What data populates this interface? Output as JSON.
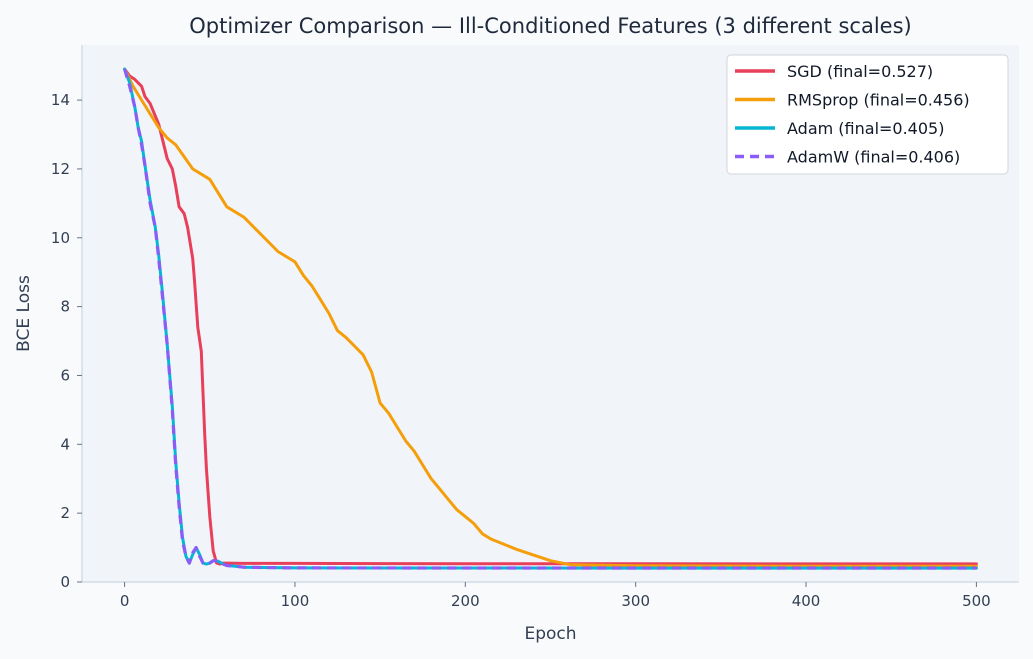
{
  "chart_data": {
    "type": "line",
    "title": "Optimizer Comparison — Ill-Conditioned Features (3 different scales)",
    "xlabel": "Epoch",
    "ylabel": "BCE Loss",
    "xlim": [
      -25,
      525
    ],
    "ylim": [
      0,
      15.6
    ],
    "xticks": [
      0,
      100,
      200,
      300,
      400,
      500
    ],
    "yticks": [
      0,
      2,
      4,
      6,
      8,
      10,
      12,
      14
    ],
    "grid": false,
    "legend_position": "top-right",
    "series": [
      {
        "name": "SGD (final=0.527)",
        "color": "#e83f5b",
        "dash": "solid",
        "x": [
          0,
          3,
          6,
          10,
          12,
          15,
          20,
          22,
          25,
          28,
          30,
          32,
          35,
          37,
          40,
          41,
          43,
          45,
          47,
          48,
          50,
          52,
          54,
          56,
          58,
          60,
          70,
          100,
          200,
          300,
          400,
          500
        ],
        "y": [
          14.9,
          14.7,
          14.6,
          14.4,
          14.1,
          13.9,
          13.3,
          12.9,
          12.3,
          12.0,
          11.5,
          10.9,
          10.7,
          10.3,
          9.4,
          8.8,
          7.4,
          6.7,
          4.3,
          3.3,
          1.9,
          0.9,
          0.55,
          0.52,
          0.55,
          0.55,
          0.54,
          0.54,
          0.53,
          0.53,
          0.527,
          0.527
        ]
      },
      {
        "name": "RMSprop (final=0.456)",
        "color": "#f59e0b",
        "dash": "solid",
        "x": [
          0,
          5,
          10,
          20,
          25,
          30,
          40,
          50,
          60,
          70,
          80,
          90,
          100,
          105,
          110,
          115,
          120,
          125,
          130,
          140,
          145,
          150,
          155,
          160,
          165,
          170,
          175,
          180,
          185,
          190,
          195,
          200,
          205,
          210,
          215,
          230,
          250,
          262,
          300,
          400,
          500
        ],
        "y": [
          14.9,
          14.4,
          14.0,
          13.2,
          12.9,
          12.7,
          12.0,
          11.7,
          10.9,
          10.6,
          10.1,
          9.6,
          9.3,
          8.9,
          8.6,
          8.2,
          7.8,
          7.3,
          7.1,
          6.6,
          6.1,
          5.2,
          4.9,
          4.5,
          4.1,
          3.8,
          3.4,
          3.0,
          2.7,
          2.4,
          2.1,
          1.9,
          1.7,
          1.4,
          1.25,
          0.95,
          0.62,
          0.5,
          0.47,
          0.46,
          0.456
        ]
      },
      {
        "name": "Adam (final=0.405)",
        "color": "#06b6d4",
        "dash": "solid",
        "x": [
          0,
          3,
          6,
          8,
          10,
          12,
          15,
          18,
          20,
          22,
          25,
          28,
          30,
          32,
          34,
          36,
          38,
          40,
          42,
          44,
          46,
          48,
          50,
          52,
          55,
          58,
          60,
          65,
          70,
          80,
          100,
          200,
          300,
          400,
          500
        ],
        "y": [
          14.9,
          14.5,
          13.8,
          13.2,
          12.8,
          12.1,
          11.1,
          10.3,
          9.5,
          8.5,
          6.9,
          5.1,
          3.5,
          2.3,
          1.3,
          0.75,
          0.55,
          0.8,
          1.0,
          0.8,
          0.55,
          0.52,
          0.55,
          0.62,
          0.6,
          0.52,
          0.48,
          0.46,
          0.43,
          0.42,
          0.41,
          0.406,
          0.405,
          0.405,
          0.405
        ]
      },
      {
        "name": "AdamW (final=0.406)",
        "color": "#8b5cf6",
        "dash": "dashed",
        "x": [
          0,
          3,
          6,
          8,
          10,
          12,
          15,
          18,
          20,
          22,
          25,
          28,
          30,
          32,
          34,
          36,
          38,
          40,
          42,
          44,
          46,
          48,
          50,
          52,
          55,
          58,
          60,
          65,
          70,
          80,
          100,
          200,
          300,
          400,
          500
        ],
        "y": [
          14.9,
          14.4,
          13.8,
          13.2,
          12.7,
          12.1,
          11.0,
          10.3,
          9.4,
          8.4,
          6.9,
          5.0,
          3.4,
          2.2,
          1.2,
          0.75,
          0.55,
          0.85,
          1.0,
          0.75,
          0.55,
          0.52,
          0.55,
          0.62,
          0.6,
          0.52,
          0.48,
          0.46,
          0.43,
          0.42,
          0.41,
          0.407,
          0.406,
          0.406,
          0.406
        ]
      }
    ]
  }
}
